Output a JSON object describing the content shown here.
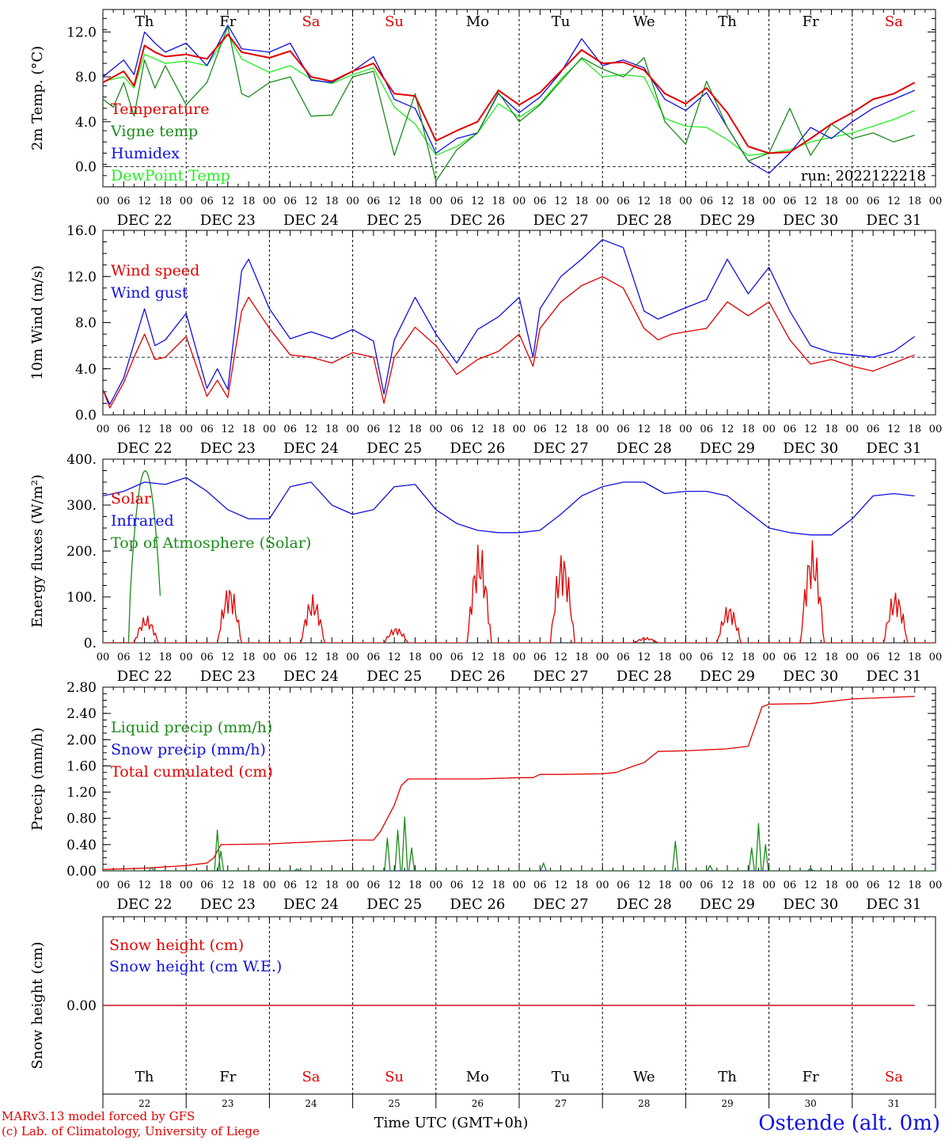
{
  "chart_data": [
    {
      "type": "line",
      "ylabel": "2m Temp. (°C)",
      "ylim": [
        -1.8,
        14.0
      ],
      "yticks": [
        "0.0",
        "4.0",
        "8.0",
        "12.0"
      ],
      "yticks_values": [
        0,
        4,
        8,
        12
      ],
      "ref_line": 0,
      "annotation": "run: 2022122218",
      "days_label_top": true,
      "series": [
        {
          "name": "Temperature",
          "color": "#e00000",
          "x": [
            0,
            6,
            9,
            12,
            15,
            18,
            24,
            30,
            36,
            40,
            48,
            54,
            60,
            66,
            72,
            78,
            84,
            90,
            96,
            102,
            108,
            114,
            120,
            126,
            132,
            138,
            144,
            150,
            156,
            162,
            168,
            174,
            180,
            186,
            192,
            198,
            204,
            210,
            216,
            222,
            228,
            234
          ],
          "y": [
            7.5,
            8.5,
            7.2,
            10.8,
            10.2,
            9.8,
            10.0,
            9.6,
            11.8,
            10.2,
            9.7,
            10.3,
            8.0,
            7.6,
            8.5,
            9.2,
            6.5,
            6.3,
            2.3,
            3.2,
            4.0,
            6.8,
            5.5,
            6.6,
            8.5,
            10.4,
            9.2,
            9.3,
            8.6,
            6.5,
            5.6,
            7.0,
            4.8,
            1.8,
            1.2,
            1.3,
            2.5,
            3.8,
            4.8,
            6.0,
            6.5,
            7.5
          ]
        },
        {
          "name": "Vigne temp",
          "color": "#1a8c1a",
          "x": [
            0,
            3,
            6,
            9,
            12,
            15,
            18,
            24,
            30,
            36,
            40,
            42,
            48,
            54,
            60,
            66,
            72,
            78,
            84,
            90,
            96,
            102,
            108,
            114,
            120,
            126,
            132,
            138,
            144,
            150,
            156,
            162,
            168,
            174,
            180,
            186,
            192,
            198,
            204,
            210,
            216,
            222,
            228,
            234
          ],
          "y": [
            6.0,
            5.3,
            7.5,
            4.5,
            9.5,
            7.0,
            9.0,
            5.5,
            7.5,
            12.5,
            6.5,
            6.2,
            7.5,
            8.0,
            4.5,
            4.6,
            8.0,
            8.5,
            1.0,
            6.5,
            -1.3,
            1.5,
            3.0,
            6.6,
            4.0,
            5.5,
            7.6,
            9.7,
            8.7,
            8.0,
            9.7,
            4.0,
            2.0,
            7.6,
            3.5,
            0.5,
            1.2,
            5.2,
            1.0,
            3.8,
            2.5,
            3.0,
            2.2,
            2.8
          ]
        },
        {
          "name": "Humidex",
          "color": "#1010e0",
          "x": [
            0,
            6,
            9,
            12,
            15,
            18,
            24,
            30,
            36,
            40,
            48,
            54,
            60,
            66,
            72,
            78,
            84,
            90,
            96,
            102,
            108,
            114,
            120,
            126,
            132,
            138,
            144,
            150,
            156,
            162,
            168,
            174,
            180,
            186,
            192,
            198,
            204,
            210,
            216,
            222,
            228,
            234
          ],
          "y": [
            8.0,
            9.5,
            8.2,
            12.0,
            11.0,
            10.2,
            11.0,
            9.0,
            12.6,
            10.5,
            10.2,
            11.0,
            7.7,
            7.5,
            8.5,
            9.8,
            6.0,
            5.2,
            1.2,
            2.5,
            3.0,
            6.5,
            4.8,
            6.2,
            8.4,
            11.4,
            9.0,
            9.5,
            8.8,
            6.0,
            5.0,
            6.6,
            3.5,
            0.5,
            -0.6,
            1.2,
            3.5,
            2.5,
            4.0,
            5.2,
            6.0,
            6.8
          ]
        },
        {
          "name": "DewPoint Temp",
          "color": "#22ee22",
          "x": [
            0,
            6,
            9,
            12,
            15,
            18,
            24,
            30,
            36,
            40,
            48,
            54,
            60,
            66,
            72,
            78,
            84,
            90,
            96,
            102,
            108,
            114,
            120,
            126,
            132,
            138,
            144,
            150,
            156,
            162,
            168,
            174,
            180,
            186,
            192,
            198,
            204,
            210,
            216,
            222,
            228,
            234
          ],
          "y": [
            7.6,
            8.0,
            7.0,
            10.0,
            9.6,
            9.2,
            9.4,
            9.0,
            11.8,
            9.6,
            8.4,
            9.0,
            7.8,
            7.4,
            8.2,
            8.8,
            5.3,
            3.8,
            1.0,
            1.8,
            3.0,
            5.6,
            4.4,
            5.6,
            7.8,
            9.6,
            8.0,
            8.2,
            8.0,
            4.3,
            3.6,
            3.5,
            2.4,
            1.0,
            1.2,
            1.5,
            2.2,
            2.6,
            3.0,
            3.6,
            4.2,
            5.0
          ]
        }
      ]
    },
    {
      "type": "line",
      "ylabel": "10m Wind (m/s)",
      "ylim": [
        0,
        16.0
      ],
      "yticks": [
        "0.0",
        "4.0",
        "8.0",
        "12.0",
        "16.0"
      ],
      "yticks_values": [
        0,
        4,
        8,
        12,
        16
      ],
      "ref_line": 5,
      "series": [
        {
          "name": "Wind speed",
          "color": "#e00000",
          "x": [
            0,
            2,
            6,
            9,
            12,
            15,
            18,
            24,
            30,
            33,
            36,
            40,
            42,
            48,
            54,
            60,
            66,
            72,
            78,
            81,
            84,
            90,
            96,
            102,
            108,
            114,
            120,
            124,
            126,
            132,
            138,
            144,
            150,
            156,
            160,
            164,
            168,
            174,
            180,
            186,
            192,
            198,
            204,
            210,
            216,
            222,
            228,
            234
          ],
          "y": [
            2.2,
            0.6,
            2.8,
            5.0,
            7.0,
            4.8,
            5.0,
            6.8,
            1.6,
            3.0,
            1.5,
            9.0,
            10.2,
            7.5,
            5.2,
            5.0,
            4.5,
            5.4,
            5.0,
            1.0,
            5.0,
            7.6,
            6.0,
            3.5,
            4.8,
            5.5,
            7.0,
            4.2,
            7.5,
            9.8,
            11.2,
            12.0,
            11.0,
            7.5,
            6.5,
            7.0,
            7.2,
            7.5,
            9.8,
            8.6,
            9.8,
            6.5,
            4.4,
            4.8,
            4.2,
            3.8,
            4.5,
            5.2
          ]
        },
        {
          "name": "Wind gust",
          "color": "#1010e0",
          "x": [
            0,
            2,
            6,
            9,
            12,
            15,
            18,
            24,
            30,
            33,
            36,
            40,
            42,
            48,
            54,
            60,
            66,
            72,
            78,
            81,
            84,
            90,
            96,
            102,
            108,
            114,
            120,
            124,
            126,
            132,
            138,
            144,
            150,
            156,
            160,
            164,
            168,
            174,
            180,
            186,
            192,
            198,
            204,
            210,
            216,
            222,
            228,
            234
          ],
          "y": [
            2.2,
            0.9,
            3.2,
            6.2,
            9.2,
            6.0,
            6.5,
            8.8,
            2.3,
            4.0,
            2.2,
            12.5,
            13.5,
            9.2,
            6.6,
            7.2,
            6.6,
            7.4,
            6.4,
            1.8,
            6.5,
            10.2,
            7.0,
            4.5,
            7.4,
            8.5,
            10.2,
            5.0,
            9.2,
            12.0,
            13.5,
            15.2,
            14.5,
            9.0,
            8.3,
            8.8,
            9.3,
            10.0,
            13.5,
            10.5,
            12.8,
            9.0,
            6.0,
            5.4,
            5.2,
            5.0,
            5.5,
            6.8
          ]
        }
      ]
    },
    {
      "type": "line",
      "ylabel": "Energy fluxes (W/m²)",
      "ylim": [
        0,
        400
      ],
      "yticks": [
        "0.",
        "100.",
        "200.",
        "300.",
        "400."
      ],
      "yticks_values": [
        0,
        100,
        200,
        300,
        400
      ],
      "series": [
        {
          "name": "Solar",
          "color": "#e00000",
          "day_peaks": [
            60,
            130,
            105,
            35,
            220,
            205,
            12,
            85,
            225,
            115
          ]
        },
        {
          "name": "Infrared",
          "color": "#1010e0",
          "x": [
            0,
            6,
            12,
            18,
            24,
            30,
            36,
            42,
            48,
            54,
            60,
            66,
            72,
            78,
            84,
            90,
            96,
            102,
            108,
            114,
            120,
            126,
            132,
            138,
            144,
            150,
            156,
            162,
            168,
            174,
            180,
            186,
            192,
            198,
            204,
            210,
            216,
            222,
            228,
            234
          ],
          "y": [
            320,
            330,
            350,
            345,
            360,
            330,
            290,
            270,
            270,
            340,
            350,
            300,
            280,
            290,
            340,
            345,
            290,
            260,
            245,
            240,
            240,
            245,
            280,
            320,
            340,
            350,
            350,
            325,
            330,
            330,
            320,
            285,
            250,
            240,
            235,
            235,
            270,
            320,
            325,
            320
          ]
        },
        {
          "name": "Top of Atmosphere (Solar)",
          "color": "#1a8c1a",
          "day_peak": 375
        }
      ]
    },
    {
      "type": "line",
      "ylabel": "Precip (mm/h)",
      "ylim": [
        0,
        2.8
      ],
      "yticks": [
        "0.00",
        "0.40",
        "0.80",
        "1.20",
        "1.60",
        "2.00",
        "2.40",
        "2.80"
      ],
      "yticks_values": [
        0,
        0.4,
        0.8,
        1.2,
        1.6,
        2.0,
        2.4,
        2.8
      ],
      "series": [
        {
          "name": "Liquid precip (mm/h)",
          "color": "#1a8c1a",
          "spikes": [
            {
              "x": 14,
              "y": 0.05
            },
            {
              "x": 33,
              "y": 0.62
            },
            {
              "x": 34,
              "y": 0.3
            },
            {
              "x": 56,
              "y": 0.03
            },
            {
              "x": 82,
              "y": 0.5
            },
            {
              "x": 85,
              "y": 0.62
            },
            {
              "x": 87,
              "y": 0.82
            },
            {
              "x": 89,
              "y": 0.35
            },
            {
              "x": 127,
              "y": 0.12
            },
            {
              "x": 165,
              "y": 0.45
            },
            {
              "x": 175,
              "y": 0.08
            },
            {
              "x": 187,
              "y": 0.35
            },
            {
              "x": 189,
              "y": 0.72
            },
            {
              "x": 191,
              "y": 0.4
            },
            {
              "x": 204,
              "y": 0.04
            }
          ]
        },
        {
          "name": "Snow precip (mm/h)",
          "color": "#1010e0",
          "x": [
            0,
            234
          ],
          "y": [
            0,
            0
          ]
        },
        {
          "name": "Total cumulated (cm)",
          "color": "#e00000",
          "x": [
            0,
            12,
            24,
            30,
            32,
            34,
            48,
            60,
            72,
            78,
            80,
            84,
            86,
            88,
            96,
            108,
            120,
            124,
            126,
            132,
            144,
            148,
            152,
            156,
            160,
            168,
            180,
            186,
            188,
            190,
            192,
            204,
            216,
            234
          ],
          "y": [
            0.02,
            0.04,
            0.08,
            0.12,
            0.2,
            0.4,
            0.41,
            0.44,
            0.47,
            0.47,
            0.6,
            1.0,
            1.3,
            1.4,
            1.4,
            1.4,
            1.42,
            1.42,
            1.47,
            1.47,
            1.48,
            1.5,
            1.58,
            1.65,
            1.82,
            1.83,
            1.86,
            1.9,
            2.2,
            2.5,
            2.54,
            2.55,
            2.62,
            2.66
          ]
        }
      ]
    },
    {
      "type": "line",
      "ylabel": "Snow height (cm)",
      "ylim": [
        -1,
        1
      ],
      "yticks": [
        "0.00"
      ],
      "yticks_values": [
        0
      ],
      "series": [
        {
          "name": "Snow height (cm)",
          "color": "#e00000",
          "x": [
            0,
            234
          ],
          "y": [
            0,
            0
          ]
        },
        {
          "name": "Snow height (cm W.E.)",
          "color": "#1010e0",
          "x": [
            0,
            234
          ],
          "y": [
            0,
            0
          ]
        }
      ]
    }
  ],
  "day_names": [
    "Th",
    "Fr",
    "Sa",
    "Su",
    "Mo",
    "Tu",
    "We",
    "Th",
    "Fr",
    "Sa"
  ],
  "weekend_color": "#e00000",
  "date_labels": [
    "DEC 22",
    "DEC 23",
    "DEC 24",
    "DEC 25",
    "DEC 26",
    "DEC 27",
    "DEC 28",
    "DEC 29",
    "DEC 30",
    "DEC 31"
  ],
  "day_numbers": [
    "22",
    "23",
    "24",
    "25",
    "26",
    "27",
    "28",
    "29",
    "30",
    "31"
  ],
  "hour_ticks": [
    "00",
    "06",
    "12",
    "18"
  ],
  "xlabel": "Time UTC (GMT+0h)",
  "xlabel_overstrike": "UTC",
  "credit_line_1": "MARv3.13 model forced by GFS",
  "credit_line_2": "(c) Lab. of Climatology, University of Liege",
  "station": "Ostende (alt. 0m)"
}
